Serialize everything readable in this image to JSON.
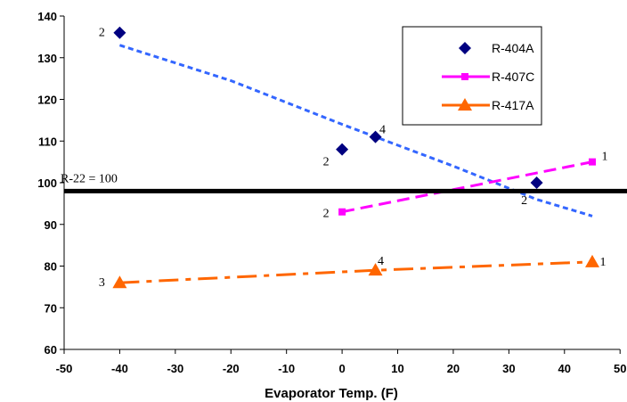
{
  "chart_data": {
    "type": "line",
    "xlabel": "Evaporator Temp. (F)",
    "ylabel": "",
    "xlim": [
      -50,
      50
    ],
    "ylim": [
      60,
      140
    ],
    "xticks": [
      -50,
      -40,
      -30,
      -20,
      -10,
      0,
      10,
      20,
      30,
      40,
      50
    ],
    "yticks": [
      60,
      70,
      80,
      90,
      100,
      110,
      120,
      130,
      140
    ],
    "grid": false,
    "legend_position": "top-right",
    "series": [
      {
        "name": "R-404A",
        "color": "#000080",
        "marker": "diamond",
        "line": "none",
        "points": [
          {
            "x": -40,
            "y": 136,
            "label": "2"
          },
          {
            "x": 0,
            "y": 108,
            "label": "2"
          },
          {
            "x": 6,
            "y": 111,
            "label": "4"
          },
          {
            "x": 35,
            "y": 100,
            "label": "2"
          }
        ],
        "trendline": {
          "color": "#3366ff",
          "points": [
            [
              -40,
              133
            ],
            [
              -20,
              124.5
            ],
            [
              0,
              114
            ],
            [
              20,
              104
            ],
            [
              35,
              96
            ],
            [
              45,
              92
            ]
          ]
        }
      },
      {
        "name": "R-407C",
        "color": "#ff00ff",
        "marker": "square",
        "line": "dashed",
        "points": [
          {
            "x": 0,
            "y": 93,
            "label": "2"
          },
          {
            "x": 45,
            "y": 105,
            "label": "1"
          }
        ]
      },
      {
        "name": "R-417A",
        "color": "#ff6600",
        "marker": "triangle",
        "line": "dashdot",
        "points": [
          {
            "x": -40,
            "y": 76,
            "label": "3"
          },
          {
            "x": 6,
            "y": 79,
            "label": "4"
          },
          {
            "x": 45,
            "y": 81,
            "label": "1"
          }
        ]
      }
    ],
    "reference_line": {
      "y": 98,
      "label": "R-22 = 100",
      "color": "#000000"
    }
  }
}
